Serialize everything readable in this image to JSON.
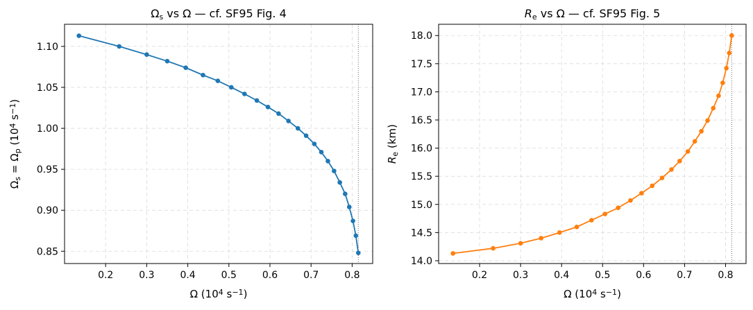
{
  "chart_data": [
    {
      "type": "line",
      "title_parts": [
        "Ω",
        "s",
        " vs Ω — cf. SF95 Fig. 4"
      ],
      "xlabel_parts": [
        "Ω (10",
        "4",
        " s",
        "−1",
        ")"
      ],
      "ylabel_parts": [
        "Ω",
        "s",
        " = Ω",
        "p",
        " (10",
        "4",
        " s",
        "−1",
        ")"
      ],
      "xlim": [
        0.1,
        0.85
      ],
      "ylim": [
        0.835,
        1.127
      ],
      "xticks": [
        0.2,
        0.3,
        0.4,
        0.5,
        0.6,
        0.7,
        0.8
      ],
      "xtick_labels": [
        "0.2",
        "0.3",
        "0.4",
        "0.5",
        "0.6",
        "0.7",
        "0.8"
      ],
      "yticks": [
        0.85,
        0.9,
        0.95,
        1.0,
        1.05,
        1.1
      ],
      "ytick_labels": [
        "0.85",
        "0.90",
        "0.95",
        "1.00",
        "1.05",
        "1.10"
      ],
      "grid": true,
      "vline_x": 0.815,
      "color": "#1f77b4",
      "x": [
        0.135,
        0.233,
        0.3,
        0.35,
        0.395,
        0.437,
        0.473,
        0.506,
        0.538,
        0.568,
        0.595,
        0.621,
        0.645,
        0.668,
        0.688,
        0.708,
        0.725,
        0.741,
        0.756,
        0.77,
        0.783,
        0.793,
        0.802,
        0.809,
        0.815
      ],
      "y": [
        1.113,
        1.1,
        1.09,
        1.082,
        1.074,
        1.065,
        1.058,
        1.05,
        1.042,
        1.034,
        1.026,
        1.018,
        1.009,
        1.0,
        0.991,
        0.981,
        0.971,
        0.96,
        0.948,
        0.934,
        0.92,
        0.904,
        0.887,
        0.869,
        0.848
      ]
    },
    {
      "type": "line",
      "title_parts": [
        "R",
        "e",
        " vs Ω — cf. SF95 Fig. 5"
      ],
      "xlabel_parts": [
        "Ω (10",
        "4",
        " s",
        "−1",
        ")"
      ],
      "ylabel_parts": [
        "R",
        "e",
        " (km)"
      ],
      "xlim": [
        0.1,
        0.85
      ],
      "ylim": [
        13.95,
        18.2
      ],
      "xticks": [
        0.2,
        0.3,
        0.4,
        0.5,
        0.6,
        0.7,
        0.8
      ],
      "xtick_labels": [
        "0.2",
        "0.3",
        "0.4",
        "0.5",
        "0.6",
        "0.7",
        "0.8"
      ],
      "yticks": [
        14.0,
        14.5,
        15.0,
        15.5,
        16.0,
        16.5,
        17.0,
        17.5,
        18.0
      ],
      "ytick_labels": [
        "14.0",
        "14.5",
        "15.0",
        "15.5",
        "16.0",
        "16.5",
        "17.0",
        "17.5",
        "18.0"
      ],
      "grid": true,
      "vline_x": 0.815,
      "color": "#ff7f0e",
      "x": [
        0.135,
        0.233,
        0.3,
        0.35,
        0.395,
        0.437,
        0.473,
        0.506,
        0.538,
        0.568,
        0.595,
        0.621,
        0.645,
        0.668,
        0.688,
        0.708,
        0.725,
        0.741,
        0.756,
        0.77,
        0.783,
        0.793,
        0.802,
        0.809,
        0.815
      ],
      "y": [
        14.13,
        14.22,
        14.31,
        14.4,
        14.5,
        14.6,
        14.72,
        14.83,
        14.94,
        15.07,
        15.2,
        15.33,
        15.47,
        15.62,
        15.77,
        15.94,
        16.12,
        16.3,
        16.49,
        16.71,
        16.93,
        17.16,
        17.42,
        17.69,
        18.0
      ]
    }
  ]
}
